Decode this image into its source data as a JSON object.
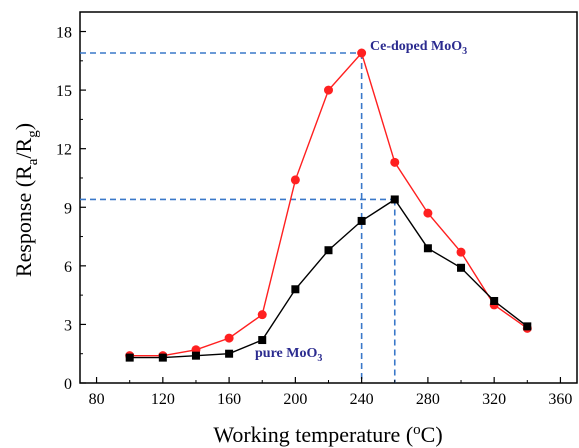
{
  "chart_data": {
    "type": "line",
    "xlabel": {
      "prefix": "Working temperature (",
      "sup": "o",
      "suffix": "C)"
    },
    "ylabel": {
      "prefix": "Response (R",
      "sub_a": "a",
      "mid": "/R",
      "sub_g": "g",
      "suffix": ")"
    },
    "xlim": [
      70,
      370
    ],
    "ylim": [
      0,
      19
    ],
    "x_ticks": [
      80,
      120,
      160,
      200,
      240,
      280,
      320,
      360
    ],
    "y_ticks": [
      0,
      3,
      6,
      9,
      12,
      15,
      18
    ],
    "grid": false,
    "series": [
      {
        "label_main": "Ce-doped MoO",
        "label_sub": "3",
        "color": "#ff2020",
        "marker": "circle",
        "x": [
          100,
          120,
          140,
          160,
          180,
          200,
          220,
          240,
          260,
          280,
          300,
          320,
          340
        ],
        "y": [
          1.4,
          1.4,
          1.7,
          2.3,
          3.5,
          10.4,
          15.0,
          16.9,
          11.3,
          8.7,
          6.7,
          4.0,
          2.8
        ]
      },
      {
        "label_main": "pure MoO",
        "label_sub": "3",
        "color": "#000000",
        "marker": "square",
        "x": [
          100,
          120,
          140,
          160,
          180,
          200,
          220,
          240,
          260,
          280,
          300,
          320,
          340
        ],
        "y": [
          1.3,
          1.3,
          1.4,
          1.5,
          2.2,
          4.8,
          6.8,
          8.3,
          9.4,
          6.9,
          5.9,
          4.2,
          2.9
        ]
      }
    ],
    "reference_lines": [
      {
        "x": 240,
        "y": 16.9,
        "color": "#3a78c9"
      },
      {
        "x": 260,
        "y": 9.4,
        "color": "#3a78c9"
      }
    ]
  }
}
